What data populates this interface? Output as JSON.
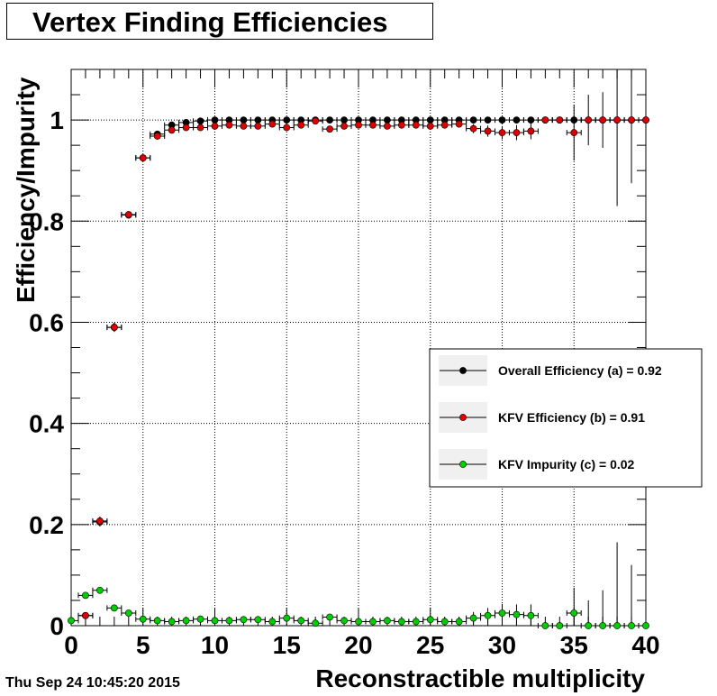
{
  "footer": {
    "timestamp": "Thu Sep 24 10:45:20 2015"
  },
  "chart_data": {
    "type": "scatter",
    "title": "Vertex Finding Efficiencies",
    "xlabel": "Reconstractible multiplicity",
    "ylabel": "Efficiency/Impurity",
    "xlim": [
      0,
      40
    ],
    "ylim": [
      0,
      1.1
    ],
    "x_ticks": [
      "0",
      "5",
      "10",
      "15",
      "20",
      "25",
      "30",
      "35",
      "40"
    ],
    "y_ticks": [
      "0",
      "0.2",
      "0.4",
      "0.6",
      "0.8",
      "1"
    ],
    "grid": true,
    "legend_position": "right",
    "x_error": 0.5,
    "series": [
      {
        "name": "Overall Efficiency (a) = 0.92",
        "color": "#000000",
        "points": [
          [
            1,
            0.02,
            0.004
          ],
          [
            2,
            0.205,
            0.009
          ],
          [
            3,
            0.59,
            0.009
          ],
          [
            4,
            0.812,
            0.007
          ],
          [
            5,
            0.925,
            0.006
          ],
          [
            6,
            0.972,
            0.004
          ],
          [
            7,
            0.99,
            0.003
          ],
          [
            8,
            0.995,
            0.003
          ],
          [
            9,
            0.998,
            0.002
          ],
          [
            10,
            1.0,
            0.002
          ],
          [
            11,
            1.0,
            0.002
          ],
          [
            12,
            1.0,
            0.002
          ],
          [
            13,
            1.0,
            0.002
          ],
          [
            14,
            1.0,
            0.002
          ],
          [
            15,
            1.0,
            0.002
          ],
          [
            16,
            1.0,
            0.002
          ],
          [
            17,
            1.0,
            0.002
          ],
          [
            18,
            1.0,
            0.002
          ],
          [
            19,
            1.0,
            0.002
          ],
          [
            20,
            1.0,
            0.002
          ],
          [
            21,
            1.0,
            0.002
          ],
          [
            22,
            1.0,
            0.002
          ],
          [
            23,
            1.0,
            0.002
          ],
          [
            24,
            1.0,
            0.002
          ],
          [
            25,
            1.0,
            0.002
          ],
          [
            26,
            1.0,
            0.002
          ],
          [
            27,
            1.0,
            0.002
          ],
          [
            28,
            1.0,
            0.002
          ],
          [
            29,
            1.0,
            0.002
          ],
          [
            30,
            1.0,
            0.002
          ],
          [
            31,
            1.0,
            0.002
          ],
          [
            32,
            1.0,
            0.002
          ],
          [
            33,
            1.0,
            0.002
          ],
          [
            34,
            1.0,
            0.002
          ],
          [
            35,
            1.0,
            0.002
          ],
          [
            36,
            1.0,
            0.002
          ],
          [
            37,
            1.0,
            0.002
          ],
          [
            38,
            1.0,
            0.002
          ],
          [
            39,
            1.0,
            0.002
          ],
          [
            40,
            1.0,
            0.002
          ]
        ]
      },
      {
        "name": "KFV Efficiency (b) = 0.91",
        "color": "#dd0000",
        "points": [
          [
            1,
            0.02,
            0.004
          ],
          [
            2,
            0.207,
            0.009
          ],
          [
            3,
            0.59,
            0.009
          ],
          [
            4,
            0.813,
            0.007
          ],
          [
            5,
            0.925,
            0.006
          ],
          [
            6,
            0.968,
            0.005
          ],
          [
            7,
            0.98,
            0.004
          ],
          [
            8,
            0.985,
            0.004
          ],
          [
            9,
            0.985,
            0.004
          ],
          [
            10,
            0.988,
            0.003
          ],
          [
            11,
            0.99,
            0.003
          ],
          [
            12,
            0.988,
            0.003
          ],
          [
            13,
            0.988,
            0.004
          ],
          [
            14,
            0.992,
            0.004
          ],
          [
            15,
            0.985,
            0.005
          ],
          [
            16,
            0.99,
            0.005
          ],
          [
            17,
            0.998,
            0.003
          ],
          [
            18,
            0.982,
            0.005
          ],
          [
            19,
            0.988,
            0.004
          ],
          [
            20,
            0.99,
            0.004
          ],
          [
            21,
            0.99,
            0.004
          ],
          [
            22,
            0.988,
            0.005
          ],
          [
            23,
            0.99,
            0.005
          ],
          [
            24,
            0.99,
            0.005
          ],
          [
            25,
            0.988,
            0.006
          ],
          [
            26,
            0.99,
            0.006
          ],
          [
            27,
            0.992,
            0.007
          ],
          [
            28,
            0.983,
            0.009
          ],
          [
            29,
            0.978,
            0.011
          ],
          [
            30,
            0.975,
            0.013
          ],
          [
            31,
            0.975,
            0.015
          ],
          [
            32,
            0.978,
            0.016
          ],
          [
            33,
            1.0,
            0.002
          ],
          [
            34,
            1.0,
            0.002
          ],
          [
            35,
            0.975,
            0.055
          ],
          [
            36,
            1.0,
            0.05
          ],
          [
            37,
            1.0,
            0.055
          ],
          [
            38,
            1.0,
            0.17
          ],
          [
            39,
            1.0,
            0.125
          ],
          [
            40,
            1.0,
            0.12
          ]
        ]
      },
      {
        "name": "KFV Impurity (c) = 0.02",
        "color": "#00cc00",
        "points": [
          [
            0,
            0.01,
            0.006
          ],
          [
            1,
            0.06,
            0.006
          ],
          [
            2,
            0.07,
            0.006
          ],
          [
            3,
            0.035,
            0.004
          ],
          [
            4,
            0.025,
            0.004
          ],
          [
            5,
            0.013,
            0.004
          ],
          [
            6,
            0.01,
            0.003
          ],
          [
            7,
            0.008,
            0.003
          ],
          [
            8,
            0.01,
            0.003
          ],
          [
            9,
            0.013,
            0.004
          ],
          [
            10,
            0.01,
            0.003
          ],
          [
            11,
            0.01,
            0.003
          ],
          [
            12,
            0.012,
            0.004
          ],
          [
            13,
            0.012,
            0.004
          ],
          [
            14,
            0.008,
            0.004
          ],
          [
            15,
            0.015,
            0.005
          ],
          [
            16,
            0.01,
            0.005
          ],
          [
            17,
            0.005,
            0.004
          ],
          [
            18,
            0.017,
            0.006
          ],
          [
            19,
            0.01,
            0.005
          ],
          [
            20,
            0.008,
            0.005
          ],
          [
            21,
            0.008,
            0.005
          ],
          [
            22,
            0.01,
            0.006
          ],
          [
            23,
            0.008,
            0.006
          ],
          [
            24,
            0.008,
            0.006
          ],
          [
            25,
            0.012,
            0.008
          ],
          [
            26,
            0.008,
            0.008
          ],
          [
            27,
            0.008,
            0.008
          ],
          [
            28,
            0.015,
            0.012
          ],
          [
            29,
            0.02,
            0.015
          ],
          [
            30,
            0.025,
            0.018
          ],
          [
            31,
            0.022,
            0.02
          ],
          [
            32,
            0.02,
            0.022
          ],
          [
            33,
            0.0,
            0.002
          ],
          [
            34,
            0.0,
            0.002
          ],
          [
            35,
            0.025,
            0.05
          ],
          [
            36,
            0.0,
            0.05
          ],
          [
            37,
            0.0,
            0.07
          ],
          [
            38,
            0.0,
            0.165
          ],
          [
            39,
            0.0,
            0.12
          ],
          [
            40,
            0.0,
            0.12
          ]
        ]
      }
    ]
  }
}
